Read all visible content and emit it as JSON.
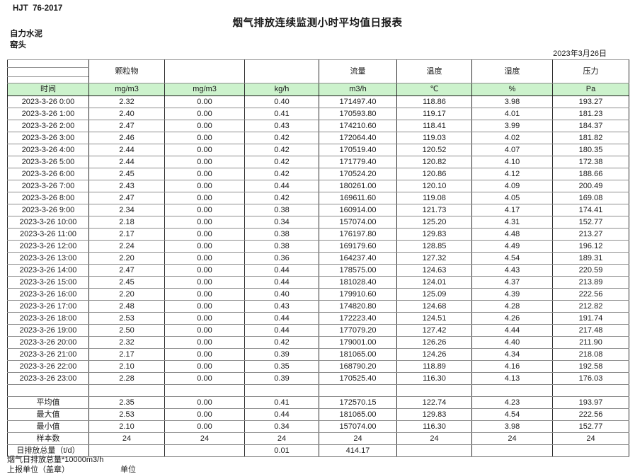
{
  "header": {
    "doc_code": "HJT  76-2017",
    "title": "烟气排放连续监测小时平均值日报表",
    "company": "自力水泥",
    "station": "窑头",
    "date": "2023年3月26日"
  },
  "table": {
    "group_headers": [
      "",
      "颗粒物",
      "",
      "",
      "流量",
      "温度",
      "湿度",
      "压力"
    ],
    "unit_row": [
      "时间",
      "mg/m3",
      "mg/m3",
      "kg/h",
      "m3/h",
      "℃",
      "%",
      "Pa"
    ],
    "rows": [
      [
        "2023-3-26 0:00",
        "2.32",
        "0.00",
        "0.40",
        "171497.40",
        "118.86",
        "3.98",
        "193.27"
      ],
      [
        "2023-3-26 1:00",
        "2.40",
        "0.00",
        "0.41",
        "170593.80",
        "119.17",
        "4.01",
        "181.23"
      ],
      [
        "2023-3-26 2:00",
        "2.47",
        "0.00",
        "0.43",
        "174210.60",
        "118.41",
        "3.99",
        "184.37"
      ],
      [
        "2023-3-26 3:00",
        "2.46",
        "0.00",
        "0.42",
        "172064.40",
        "119.03",
        "4.02",
        "181.82"
      ],
      [
        "2023-3-26 4:00",
        "2.44",
        "0.00",
        "0.42",
        "170519.40",
        "120.52",
        "4.07",
        "180.35"
      ],
      [
        "2023-3-26 5:00",
        "2.44",
        "0.00",
        "0.42",
        "171779.40",
        "120.82",
        "4.10",
        "172.38"
      ],
      [
        "2023-3-26 6:00",
        "2.45",
        "0.00",
        "0.42",
        "170524.20",
        "120.86",
        "4.12",
        "188.66"
      ],
      [
        "2023-3-26 7:00",
        "2.43",
        "0.00",
        "0.44",
        "180261.00",
        "120.10",
        "4.09",
        "200.49"
      ],
      [
        "2023-3-26 8:00",
        "2.47",
        "0.00",
        "0.42",
        "169611.60",
        "119.08",
        "4.05",
        "169.08"
      ],
      [
        "2023-3-26 9:00",
        "2.34",
        "0.00",
        "0.38",
        "160914.00",
        "121.73",
        "4.17",
        "174.41"
      ],
      [
        "2023-3-26 10:00",
        "2.18",
        "0.00",
        "0.34",
        "157074.00",
        "125.20",
        "4.31",
        "152.77"
      ],
      [
        "2023-3-26 11:00",
        "2.17",
        "0.00",
        "0.38",
        "176197.80",
        "129.83",
        "4.48",
        "213.27"
      ],
      [
        "2023-3-26 12:00",
        "2.24",
        "0.00",
        "0.38",
        "169179.60",
        "128.85",
        "4.49",
        "196.12"
      ],
      [
        "2023-3-26 13:00",
        "2.20",
        "0.00",
        "0.36",
        "164237.40",
        "127.32",
        "4.54",
        "189.31"
      ],
      [
        "2023-3-26 14:00",
        "2.47",
        "0.00",
        "0.44",
        "178575.00",
        "124.63",
        "4.43",
        "220.59"
      ],
      [
        "2023-3-26 15:00",
        "2.45",
        "0.00",
        "0.44",
        "181028.40",
        "124.01",
        "4.37",
        "213.89"
      ],
      [
        "2023-3-26 16:00",
        "2.20",
        "0.00",
        "0.40",
        "179910.60",
        "125.09",
        "4.39",
        "222.56"
      ],
      [
        "2023-3-26 17:00",
        "2.48",
        "0.00",
        "0.43",
        "174820.80",
        "124.68",
        "4.28",
        "212.82"
      ],
      [
        "2023-3-26 18:00",
        "2.53",
        "0.00",
        "0.44",
        "172223.40",
        "124.51",
        "4.26",
        "191.74"
      ],
      [
        "2023-3-26 19:00",
        "2.50",
        "0.00",
        "0.44",
        "177079.20",
        "127.42",
        "4.44",
        "217.48"
      ],
      [
        "2023-3-26 20:00",
        "2.32",
        "0.00",
        "0.42",
        "179001.00",
        "126.26",
        "4.40",
        "211.90"
      ],
      [
        "2023-3-26 21:00",
        "2.17",
        "0.00",
        "0.39",
        "181065.00",
        "124.26",
        "4.34",
        "218.08"
      ],
      [
        "2023-3-26 22:00",
        "2.10",
        "0.00",
        "0.35",
        "168790.20",
        "118.89",
        "4.16",
        "192.58"
      ],
      [
        "2023-3-26 23:00",
        "2.28",
        "0.00",
        "0.39",
        "170525.40",
        "116.30",
        "4.13",
        "176.03"
      ]
    ],
    "summary_rows": [
      [
        "平均值",
        "2.35",
        "0.00",
        "0.41",
        "172570.15",
        "122.74",
        "4.23",
        "193.97"
      ],
      [
        "最大值",
        "2.53",
        "0.00",
        "0.44",
        "181065.00",
        "129.83",
        "4.54",
        "222.56"
      ],
      [
        "最小值",
        "2.10",
        "0.00",
        "0.34",
        "157074.00",
        "116.30",
        "3.98",
        "152.77"
      ],
      [
        "样本数",
        "24",
        "24",
        "24",
        "24",
        "24",
        "24",
        "24"
      ],
      [
        "日排放总量（t/d）",
        "",
        "",
        "0.01",
        "414.17",
        "",
        "",
        ""
      ]
    ]
  },
  "footer": {
    "note": "烟气日排放总量*10000m3/h",
    "report_unit_label": "上报单位（盖章）",
    "unit_label": "单位"
  },
  "colors": {
    "unit_row_bg": "#CCF2CC",
    "border_dark": "#1a1a1a"
  }
}
